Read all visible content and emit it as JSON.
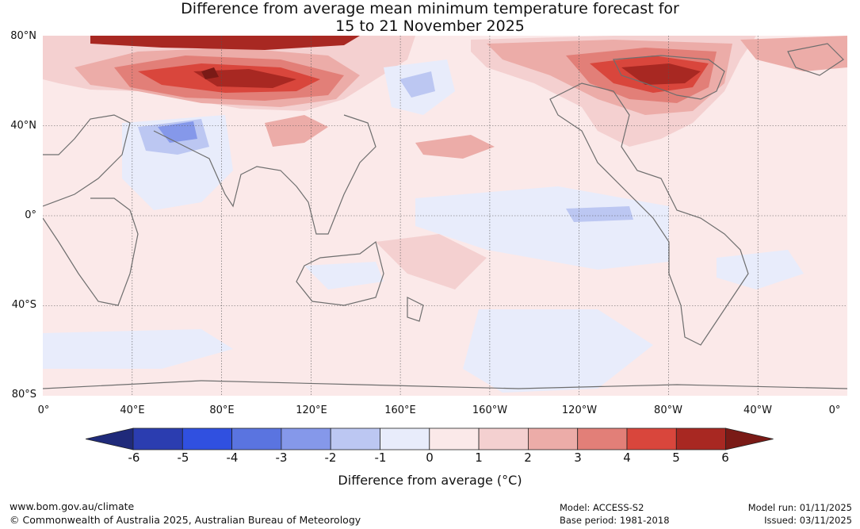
{
  "title": {
    "line1": "Difference from average mean minimum temperature forecast for",
    "line2": "15 to 21 November 2025"
  },
  "map": {
    "lat_labels": [
      "80°N",
      "40°N",
      "0°",
      "40°S",
      "80°S"
    ],
    "lon_labels": [
      "0°",
      "40°E",
      "80°E",
      "120°E",
      "160°E",
      "160°W",
      "120°W",
      "80°W",
      "40°W",
      "0°"
    ]
  },
  "colorbar": {
    "title": "Difference from average (°C)",
    "ticks": [
      "-6",
      "-5",
      "-4",
      "-3",
      "-2",
      "-1",
      "0",
      "1",
      "2",
      "3",
      "4",
      "5",
      "6"
    ],
    "colors": [
      "#1f2a7a",
      "#2b3db0",
      "#3050e0",
      "#5a74e0",
      "#8598ea",
      "#bcc7f2",
      "#e8ecfb",
      "#fbe9e9",
      "#f4d0d0",
      "#ecaca8",
      "#e27f78",
      "#d9463c",
      "#a82822",
      "#7a1a16"
    ]
  },
  "footer": {
    "url": "www.bom.gov.au/climate",
    "copyright": "© Commonwealth of Australia 2025, Australian Bureau of Meteorology",
    "model": "Model: ACCESS-S2",
    "base_period": "Base period: 1981-2018",
    "model_run": "Model run: 01/11/2025",
    "issued": "Issued: 03/11/2025"
  }
}
